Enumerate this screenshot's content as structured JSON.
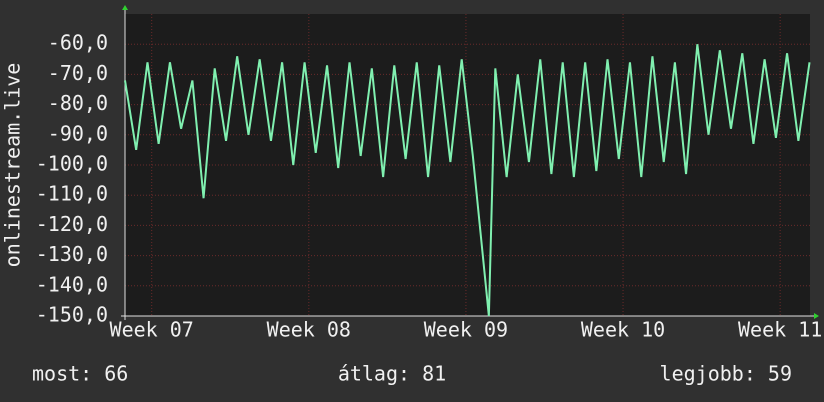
{
  "chart_data": {
    "type": "line",
    "ylabel": "onlinestream.live",
    "x": [
      6.83,
      6.901,
      6.973,
      7.044,
      7.116,
      7.187,
      7.259,
      7.33,
      7.401,
      7.473,
      7.544,
      7.616,
      7.687,
      7.759,
      7.83,
      7.901,
      7.973,
      8.044,
      8.116,
      8.187,
      8.259,
      8.33,
      8.401,
      8.473,
      8.544,
      8.616,
      8.687,
      8.759,
      8.83,
      8.901,
      8.973,
      9.044,
      9.146,
      9.187,
      9.259,
      9.33,
      9.401,
      9.473,
      9.544,
      9.616,
      9.687,
      9.759,
      9.83,
      9.901,
      9.973,
      10.044,
      10.116,
      10.187,
      10.259,
      10.33,
      10.401,
      10.473,
      10.544,
      10.616,
      10.687,
      10.759,
      10.83,
      10.901,
      10.973,
      11.044,
      11.116,
      11.187
    ],
    "series": [
      {
        "name": "onlinestream.live",
        "color": "#80f0b0",
        "values": [
          -72,
          -95,
          -66,
          -93,
          -66,
          -88,
          -72,
          -111,
          -68,
          -92,
          -64,
          -90,
          -65,
          -92,
          -66,
          -100,
          -66,
          -96,
          -67,
          -101,
          -66,
          -97,
          -68,
          -104,
          -67,
          -98,
          -66,
          -104,
          -67,
          -99,
          -65,
          -97,
          -150,
          -68,
          -104,
          -70,
          -99,
          -65,
          -103,
          -66,
          -104,
          -66,
          -102,
          -65,
          -98,
          -66,
          -104,
          -64,
          -99,
          -66,
          -103,
          -60,
          -90,
          -62,
          -88,
          -63,
          -93,
          -65,
          -91,
          -63,
          -92,
          -66
        ]
      }
    ],
    "xlim": [
      6.83,
      11.19
    ],
    "xticks": [
      {
        "value": 7,
        "label": "Week 07"
      },
      {
        "value": 8,
        "label": "Week 08"
      },
      {
        "value": 9,
        "label": "Week 09"
      },
      {
        "value": 10,
        "label": "Week 10"
      },
      {
        "value": 11,
        "label": "Week 11"
      }
    ],
    "ylim": [
      -150,
      -50
    ],
    "yticks": [
      {
        "value": -150,
        "label": "-150,0"
      },
      {
        "value": -140,
        "label": "-140,0"
      },
      {
        "value": -130,
        "label": "-130,0"
      },
      {
        "value": -120,
        "label": "-120,0"
      },
      {
        "value": -110,
        "label": "-110,0"
      },
      {
        "value": -100,
        "label": "-100,0"
      },
      {
        "value": -90,
        "label": "-90,0"
      },
      {
        "value": -80,
        "label": "-80,0"
      },
      {
        "value": -70,
        "label": "-70,0"
      },
      {
        "value": -60,
        "label": "-60,0"
      }
    ],
    "grid": true,
    "footer": [
      "most: 66",
      "átlag: 81",
      "legjobb: 59"
    ]
  }
}
